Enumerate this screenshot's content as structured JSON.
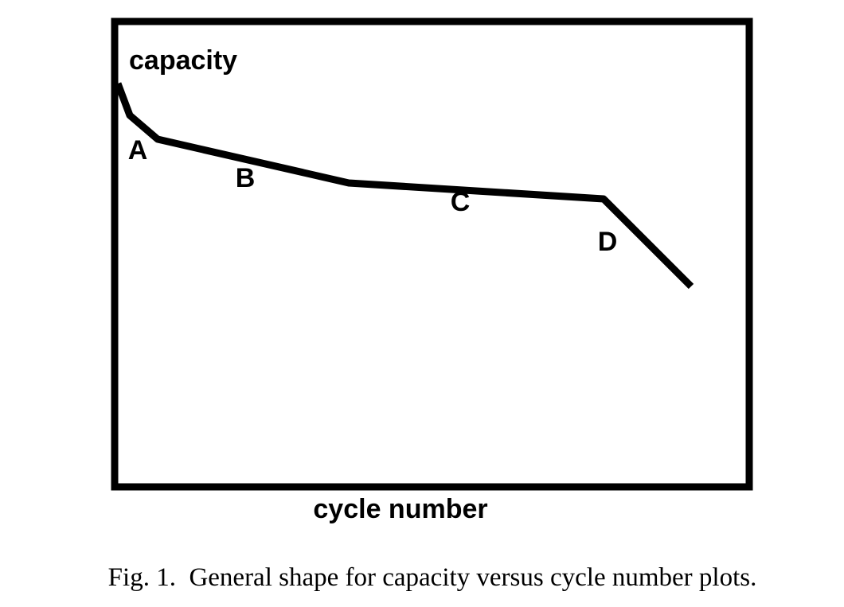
{
  "chart_data": {
    "type": "line",
    "title": "",
    "xlabel": "cycle number",
    "ylabel": "capacity",
    "grid": false,
    "series": [
      {
        "x": [
          0,
          1.5,
          5,
          29,
          61,
          72
        ],
        "y": [
          100,
          92,
          86,
          75,
          71,
          49
        ]
      }
    ],
    "annotations": [
      {
        "text": "A",
        "x": 2.5,
        "y": 81
      },
      {
        "text": "B",
        "x": 16,
        "y": 74
      },
      {
        "text": "C",
        "x": 43,
        "y": 68
      },
      {
        "text": "D",
        "x": 61.5,
        "y": 58
      }
    ],
    "xlim": [
      0,
      80
    ],
    "ylim": [
      0,
      100
    ],
    "line_color": "#000000",
    "frame_color": "#000000"
  },
  "caption": "Fig. 1.  General shape for capacity versus cycle number plots."
}
